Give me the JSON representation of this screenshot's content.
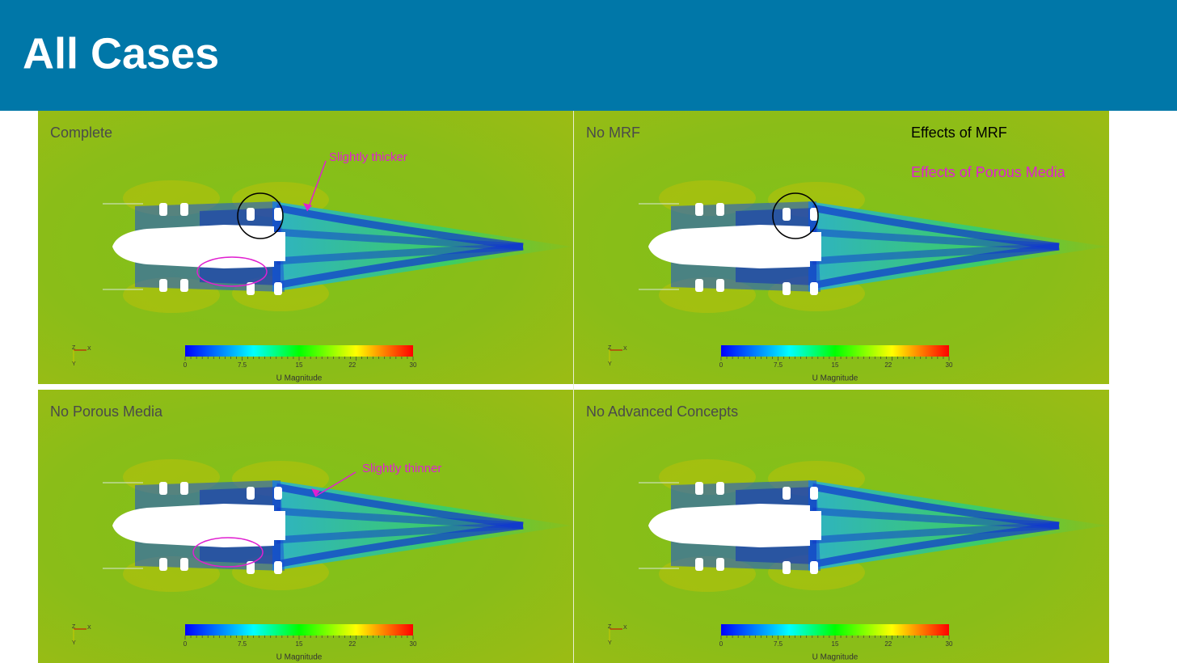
{
  "header": {
    "title": "All Cases"
  },
  "panels": [
    {
      "title": "Complete",
      "annotations": [
        "Slightly thicker"
      ]
    },
    {
      "title": "No MRF",
      "notes": [
        "Effects of MRF",
        "Effects of Porous Media"
      ]
    },
    {
      "title": "No Porous Media",
      "annotations": [
        "Slightly thinner"
      ]
    },
    {
      "title": "No Advanced Concepts"
    }
  ],
  "colorbar": {
    "ticks": [
      0,
      7.5,
      15,
      22,
      30
    ],
    "label": "U Magnitude"
  },
  "triad": {
    "labels": [
      "Z",
      "X",
      "Y"
    ]
  }
}
